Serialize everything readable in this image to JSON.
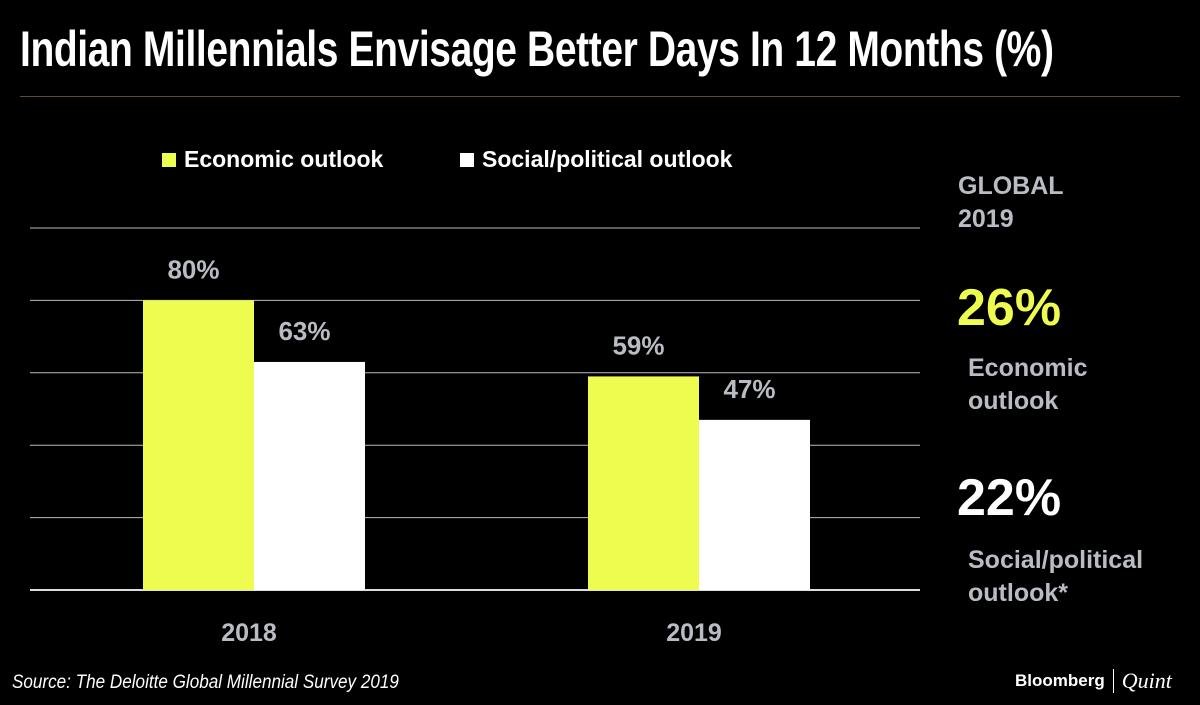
{
  "chart_data": {
    "type": "bar",
    "title": "Indian Millennials Envisage Better Days In 12 Months (%)",
    "categories": [
      "2018",
      "2019"
    ],
    "series": [
      {
        "name": "Economic outlook",
        "values": [
          80,
          59
        ],
        "labels": [
          "80%",
          "59%"
        ],
        "color": "#eefb4f"
      },
      {
        "name": "Social/political outlook",
        "values": [
          63,
          47
        ],
        "labels": [
          "63%",
          "47%"
        ],
        "color": "#ffffff"
      }
    ],
    "ylim": [
      0,
      100
    ],
    "grid": true,
    "legend": "top-left"
  },
  "global": {
    "heading_line1": "GLOBAL",
    "heading_line2": "2019",
    "econ_value": "26%",
    "econ_label_line1": "Economic",
    "econ_label_line2": "outlook",
    "social_value": "22%",
    "social_label_line1": "Social/political",
    "social_label_line2": "outlook*"
  },
  "source": "Source: The Deloitte Global Millennial Survey 2019",
  "logo": {
    "left": "Bloomberg",
    "right": "Quint"
  }
}
